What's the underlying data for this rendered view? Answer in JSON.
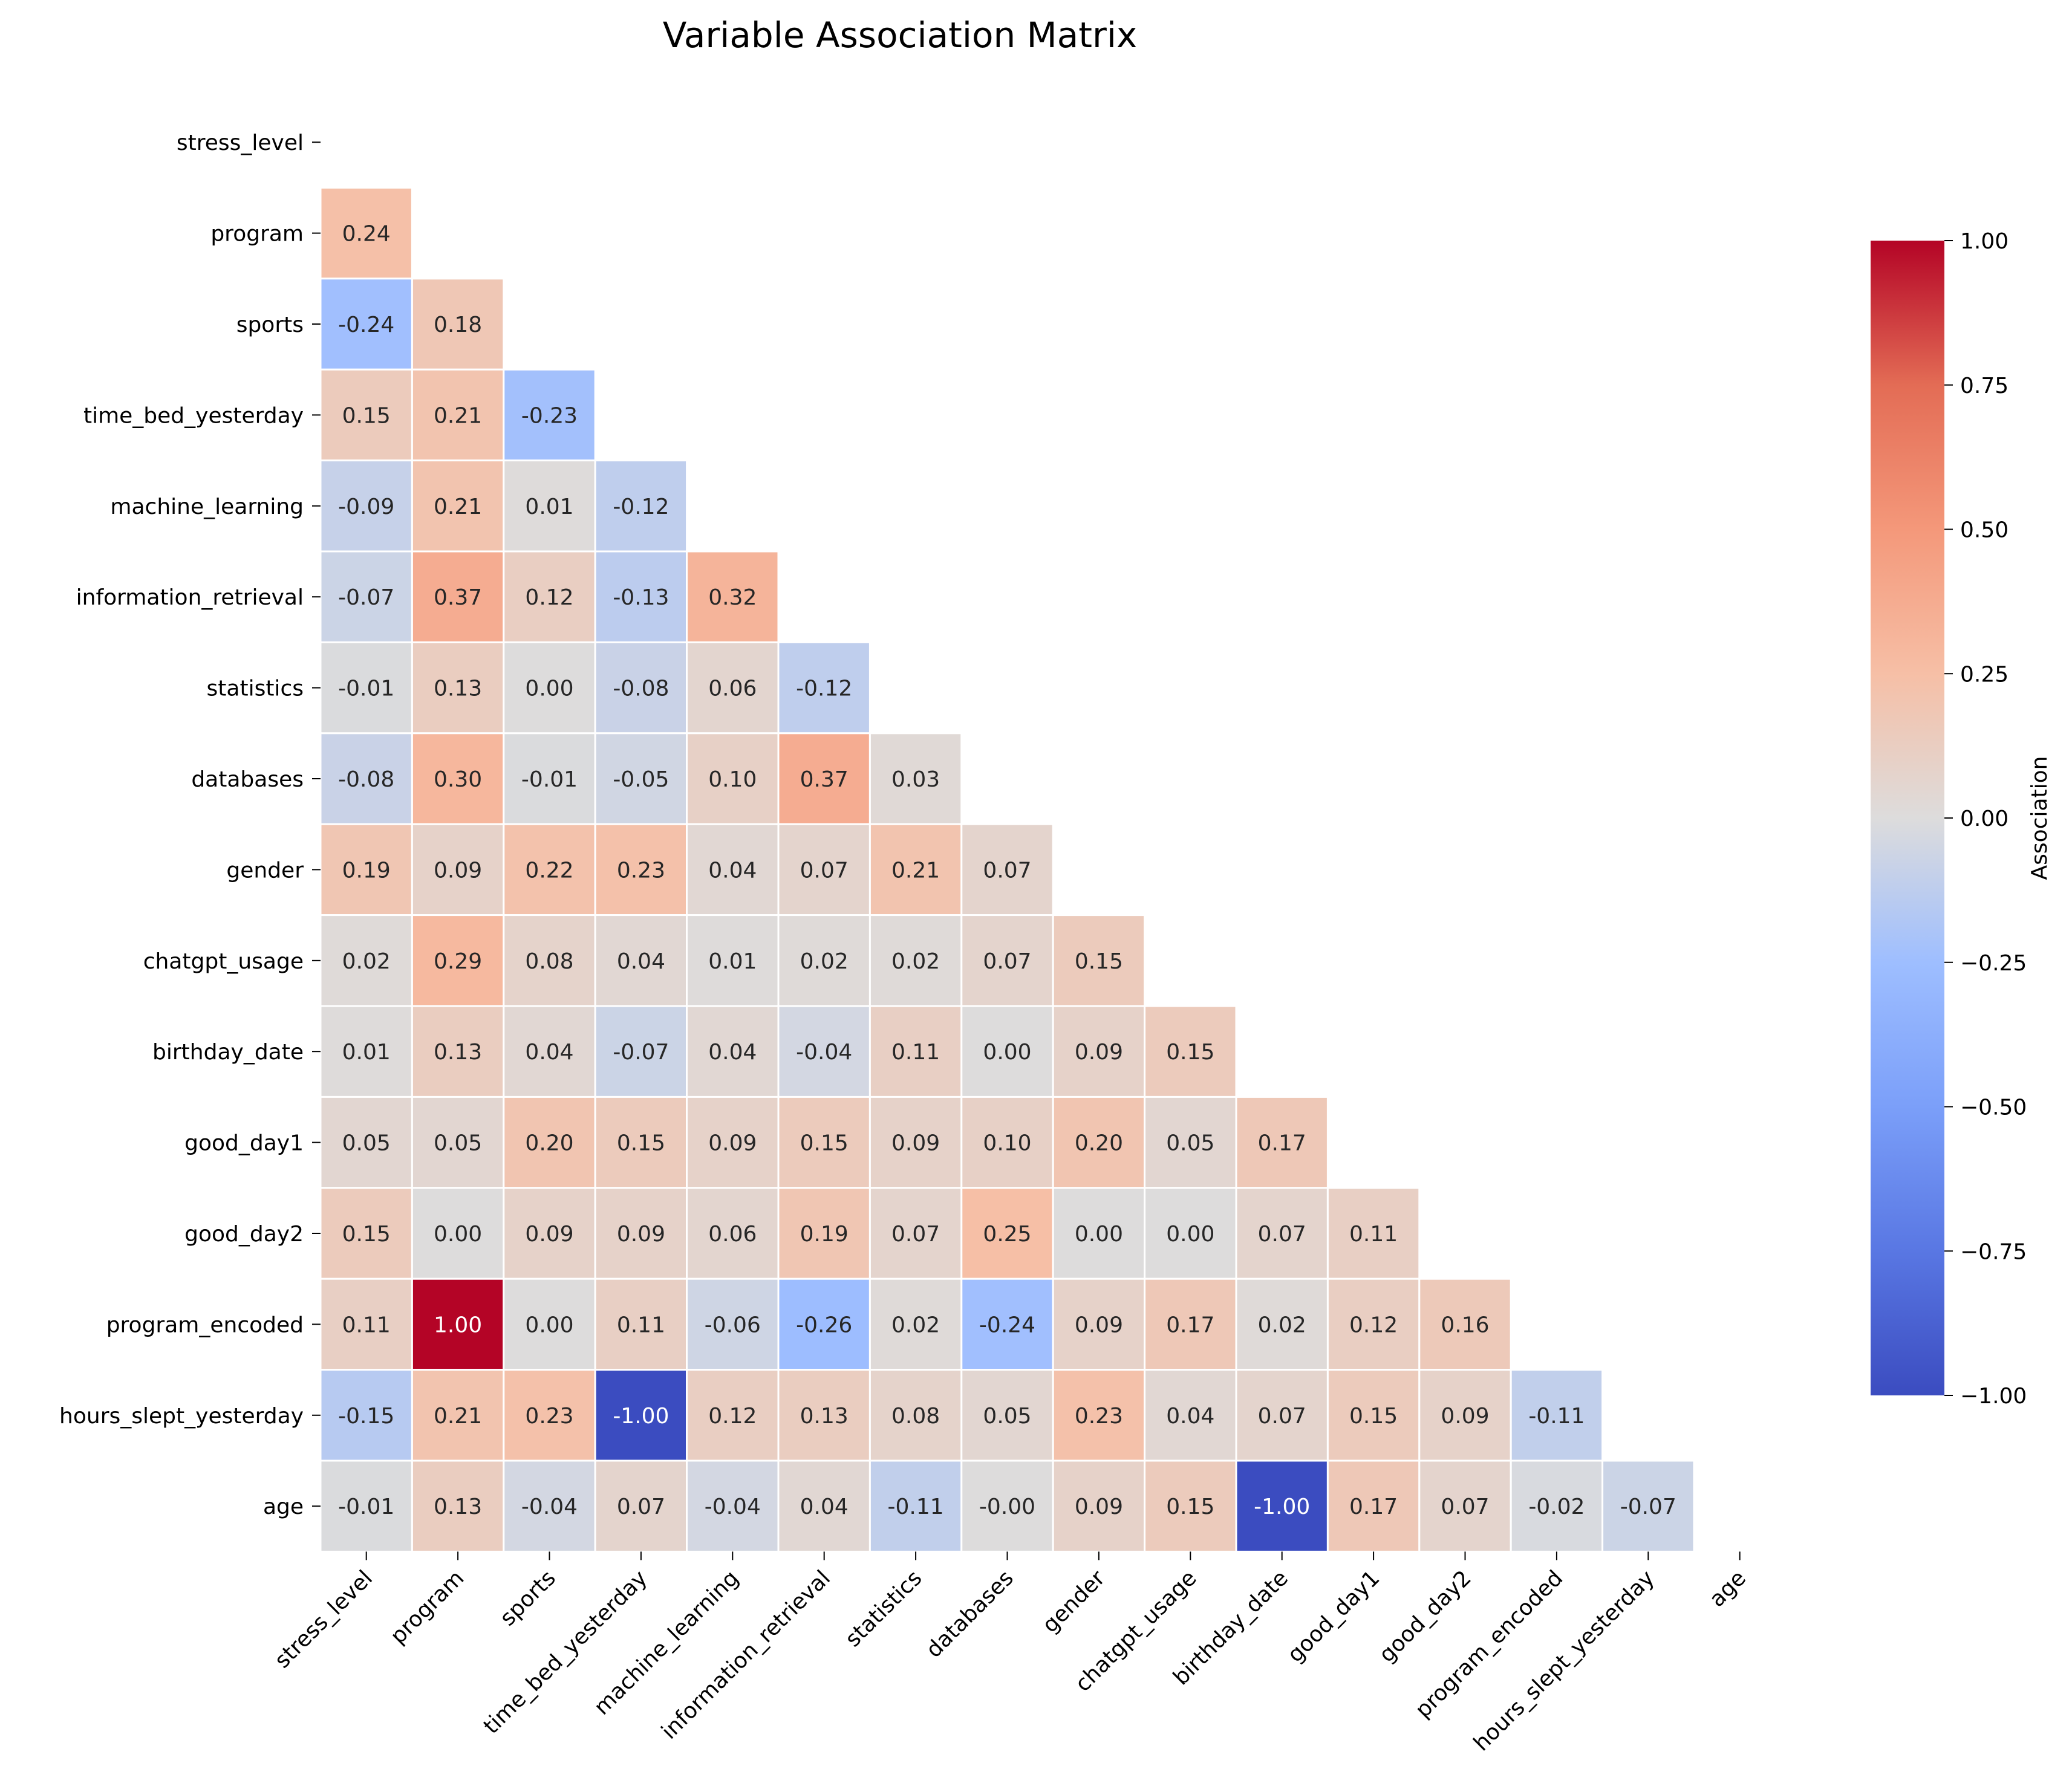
{
  "chart_data": {
    "type": "heatmap",
    "title": "Variable Association Matrix",
    "variables": [
      "stress_level",
      "program",
      "sports",
      "time_bed_yesterday",
      "machine_learning",
      "information_retrieval",
      "statistics",
      "databases",
      "gender",
      "chatgpt_usage",
      "birthday_date",
      "good_day1",
      "good_day2",
      "program_encoded",
      "hours_slept_yesterday",
      "age"
    ],
    "mask": "upper-triangle-including-diagonal",
    "lower_triangle": [
      [],
      [
        0.24
      ],
      [
        -0.24,
        0.18
      ],
      [
        0.15,
        0.21,
        -0.23
      ],
      [
        -0.09,
        0.21,
        0.01,
        -0.12
      ],
      [
        -0.07,
        0.37,
        0.12,
        -0.13,
        0.32
      ],
      [
        -0.01,
        0.13,
        0.0,
        -0.08,
        0.06,
        -0.12
      ],
      [
        -0.08,
        0.3,
        -0.01,
        -0.05,
        0.1,
        0.37,
        0.03
      ],
      [
        0.19,
        0.09,
        0.22,
        0.23,
        0.04,
        0.07,
        0.21,
        0.07
      ],
      [
        0.02,
        0.29,
        0.08,
        0.04,
        0.01,
        0.02,
        0.02,
        0.07,
        0.15
      ],
      [
        0.01,
        0.13,
        0.04,
        -0.07,
        0.04,
        -0.04,
        0.11,
        0.0,
        0.09,
        0.15
      ],
      [
        0.05,
        0.05,
        0.2,
        0.15,
        0.09,
        0.15,
        0.09,
        0.1,
        0.2,
        0.05,
        0.17
      ],
      [
        0.15,
        0.0,
        0.09,
        0.09,
        0.06,
        0.19,
        0.07,
        0.25,
        0.0,
        0.0,
        0.07,
        0.11
      ],
      [
        0.11,
        1.0,
        0.0,
        0.11,
        -0.06,
        -0.26,
        0.02,
        -0.24,
        0.09,
        0.17,
        0.02,
        0.12,
        0.16
      ],
      [
        -0.15,
        0.21,
        0.23,
        -1.0,
        0.12,
        0.13,
        0.08,
        0.05,
        0.23,
        0.04,
        0.07,
        0.15,
        0.09,
        -0.11
      ],
      [
        -0.01,
        0.13,
        -0.04,
        0.07,
        -0.04,
        0.04,
        -0.11,
        -0.0,
        0.09,
        0.15,
        -1.0,
        0.17,
        0.07,
        -0.02,
        -0.07
      ]
    ],
    "colorbar": {
      "label": "Association",
      "colormap": "coolwarm",
      "vmin": -1.0,
      "vmax": 1.0,
      "ticks": [
        "1.00",
        "0.75",
        "0.50",
        "0.25",
        "0.00",
        "−0.25",
        "−0.50",
        "−0.75",
        "−1.00"
      ]
    },
    "grid": false,
    "cell_border_color": "#ffffff"
  }
}
